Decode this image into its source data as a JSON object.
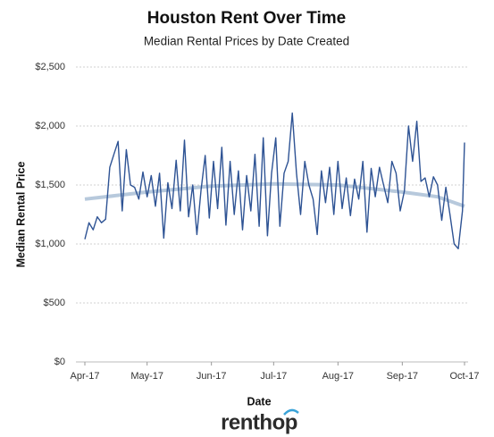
{
  "chart_data": {
    "type": "line",
    "title": "Houston Rent Over Time",
    "subtitle": "Median Rental Prices by Date Created",
    "x_label": "Date",
    "y_label": "Median Rental Price",
    "brand": "renthop",
    "grid": true,
    "xlim": [
      0,
      183
    ],
    "xticks": [
      {
        "value": 0,
        "label": "Apr-17"
      },
      {
        "value": 30,
        "label": "May-17"
      },
      {
        "value": 61,
        "label": "Jun-17"
      },
      {
        "value": 91,
        "label": "Jul-17"
      },
      {
        "value": 122,
        "label": "Aug-17"
      },
      {
        "value": 153,
        "label": "Sep-17"
      },
      {
        "value": 183,
        "label": "Oct-17"
      }
    ],
    "ylim": [
      0,
      2500
    ],
    "yticks": [
      {
        "value": 0,
        "label": "$0"
      },
      {
        "value": 500,
        "label": "$500"
      },
      {
        "value": 1000,
        "label": "$1,000"
      },
      {
        "value": 1500,
        "label": "$1,500"
      },
      {
        "value": 2000,
        "label": "$2,000"
      },
      {
        "value": 2500,
        "label": "$2,500"
      }
    ],
    "series": [
      {
        "color": "#b7c9dc",
        "x": [
          0,
          30,
          61,
          91,
          122,
          153,
          170,
          183
        ],
        "values": [
          1380,
          1440,
          1490,
          1510,
          1500,
          1440,
          1400,
          1320
        ]
      },
      {
        "color": "#2e5394",
        "x": [
          0,
          2,
          4,
          6,
          8,
          10,
          12,
          14,
          16,
          18,
          20,
          22,
          24,
          26,
          28,
          30,
          32,
          34,
          36,
          38,
          40,
          42,
          44,
          46,
          48,
          50,
          52,
          54,
          56,
          58,
          60,
          62,
          64,
          66,
          68,
          70,
          72,
          74,
          76,
          78,
          80,
          82,
          84,
          86,
          88,
          90,
          92,
          94,
          96,
          98,
          100,
          102,
          104,
          106,
          108,
          110,
          112,
          114,
          116,
          118,
          120,
          122,
          124,
          126,
          128,
          130,
          132,
          134,
          136,
          138,
          140,
          142,
          144,
          146,
          148,
          150,
          152,
          154,
          156,
          158,
          160,
          162,
          164,
          166,
          168,
          170,
          172,
          174,
          176,
          178,
          180,
          182,
          183
        ],
        "values": [
          1040,
          1180,
          1120,
          1230,
          1180,
          1210,
          1650,
          1760,
          1870,
          1280,
          1800,
          1500,
          1480,
          1380,
          1610,
          1400,
          1580,
          1320,
          1600,
          1050,
          1520,
          1300,
          1710,
          1280,
          1880,
          1230,
          1500,
          1080,
          1460,
          1750,
          1220,
          1700,
          1300,
          1820,
          1160,
          1700,
          1250,
          1620,
          1120,
          1580,
          1280,
          1760,
          1150,
          1900,
          1070,
          1600,
          1900,
          1150,
          1600,
          1700,
          2110,
          1600,
          1250,
          1700,
          1500,
          1380,
          1080,
          1620,
          1350,
          1650,
          1250,
          1700,
          1300,
          1560,
          1240,
          1550,
          1380,
          1700,
          1100,
          1640,
          1400,
          1650,
          1500,
          1350,
          1700,
          1600,
          1280,
          1450,
          2000,
          1700,
          2040,
          1530,
          1560,
          1400,
          1570,
          1500,
          1200,
          1480,
          1250,
          1000,
          960,
          1280,
          1860
        ]
      }
    ]
  }
}
